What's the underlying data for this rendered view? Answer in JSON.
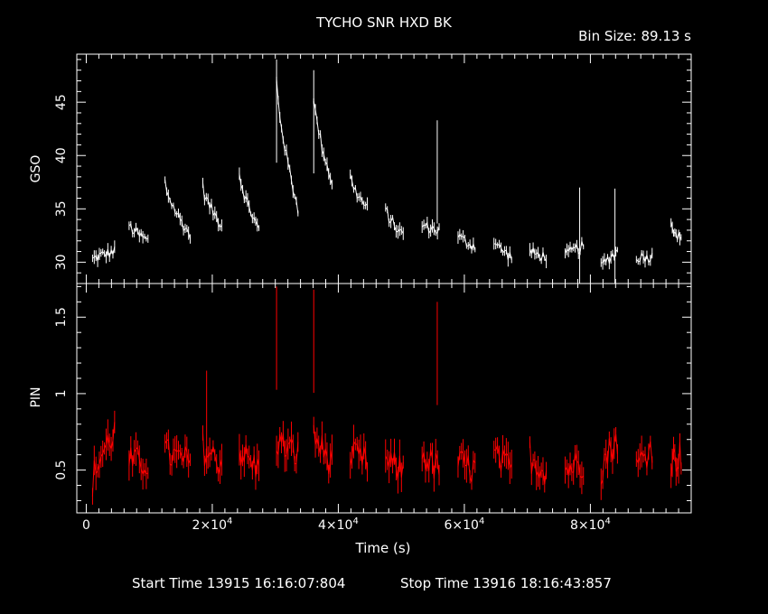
{
  "title": "TYCHO SNR HXD BK",
  "bin_size": "Bin Size: 89.13 s",
  "x_label": "Time (s)",
  "start_time": "Start Time 13915 16:16:07:804",
  "stop_time": "Stop Time 13916 18:16:43:857",
  "colors": {
    "gso": "#ffffff",
    "pin": "#ff0000",
    "axes": "#ffffff",
    "background": "#000000"
  },
  "chart_data": [
    {
      "type": "line",
      "panel": "top",
      "ylabel": "GSO",
      "xlim": [
        -1500,
        96000
      ],
      "ylim": [
        28,
        49.5
      ],
      "y_ticks": [
        30,
        35,
        40,
        45
      ],
      "y_tick_labels": [
        "30",
        "35",
        "40",
        "45"
      ],
      "segments": [
        {
          "start": 1000,
          "end": 4500,
          "v0": 30.2,
          "v1": 31.0
        },
        {
          "start": 6800,
          "end": 9800,
          "v0": 33.5,
          "v1": 32.0
        },
        {
          "start": 12500,
          "end": 16500,
          "v0": 37.5,
          "v1": 32.5
        },
        {
          "start": 18500,
          "end": 21500,
          "v0": 37.0,
          "v1": 33.5
        },
        {
          "start": 24300,
          "end": 27400,
          "v0": 38.5,
          "v1": 33.0
        },
        {
          "start": 30200,
          "end": 33600,
          "v0": 47.0,
          "v1": 35.0
        },
        {
          "start": 36100,
          "end": 39000,
          "v0": 45.5,
          "v1": 37.5
        },
        {
          "start": 41900,
          "end": 44600,
          "v0": 38.0,
          "v1": 35.0
        },
        {
          "start": 47500,
          "end": 50300,
          "v0": 35.0,
          "v1": 32.5
        },
        {
          "start": 53300,
          "end": 56000,
          "v0": 33.5,
          "v1": 33.0
        },
        {
          "start": 59000,
          "end": 61700,
          "v0": 32.5,
          "v1": 31.5
        },
        {
          "start": 64700,
          "end": 67500,
          "v0": 32.0,
          "v1": 30.5
        },
        {
          "start": 70400,
          "end": 73000,
          "v0": 31.0,
          "v1": 30.5
        },
        {
          "start": 76000,
          "end": 78900,
          "v0": 30.5,
          "v1": 31.5
        },
        {
          "start": 81700,
          "end": 84300,
          "v0": 29.5,
          "v1": 31.0
        },
        {
          "start": 87300,
          "end": 89800,
          "v0": 30.5,
          "v1": 30.5
        },
        {
          "start": 92800,
          "end": 94400,
          "v0": 34.0,
          "v1": 32.0
        }
      ],
      "spikes": [
        {
          "x": 30200,
          "y": 49.0
        },
        {
          "x": 36100,
          "y": 48.0
        },
        {
          "x": 55700,
          "y": 43.3
        },
        {
          "x": 78300,
          "y": 37.0
        },
        {
          "x": 83900,
          "y": 36.9
        }
      ]
    },
    {
      "type": "line",
      "panel": "bottom",
      "ylabel": "PIN",
      "xlim": [
        -1500,
        96000
      ],
      "ylim": [
        0.22,
        1.72
      ],
      "y_ticks": [
        0.5,
        1,
        1.5
      ],
      "y_tick_labels": [
        "0.5",
        "1",
        "1.5"
      ],
      "x_ticks": [
        0,
        20000,
        40000,
        60000,
        80000
      ],
      "x_tick_labels": [
        {
          "mant": "0",
          "exp": ""
        },
        {
          "mant": "2×10",
          "exp": "4"
        },
        {
          "mant": "4×10",
          "exp": "4"
        },
        {
          "mant": "6×10",
          "exp": "4"
        },
        {
          "mant": "8×10",
          "exp": "4"
        }
      ],
      "segments": [
        {
          "start": 1000,
          "end": 4500,
          "v0": 0.42,
          "v1": 0.75
        },
        {
          "start": 6800,
          "end": 9800,
          "v0": 0.55,
          "v1": 0.55
        },
        {
          "start": 12500,
          "end": 16500,
          "v0": 0.62,
          "v1": 0.55
        },
        {
          "start": 18500,
          "end": 21500,
          "v0": 0.65,
          "v1": 0.55
        },
        {
          "start": 24300,
          "end": 27400,
          "v0": 0.65,
          "v1": 0.5
        },
        {
          "start": 30200,
          "end": 33600,
          "v0": 0.7,
          "v1": 0.6
        },
        {
          "start": 36100,
          "end": 39000,
          "v0": 0.75,
          "v1": 0.55
        },
        {
          "start": 41900,
          "end": 44600,
          "v0": 0.6,
          "v1": 0.55
        },
        {
          "start": 47500,
          "end": 50300,
          "v0": 0.55,
          "v1": 0.5
        },
        {
          "start": 53300,
          "end": 56000,
          "v0": 0.62,
          "v1": 0.5
        },
        {
          "start": 59000,
          "end": 61700,
          "v0": 0.55,
          "v1": 0.5
        },
        {
          "start": 64700,
          "end": 67500,
          "v0": 0.6,
          "v1": 0.5
        },
        {
          "start": 70400,
          "end": 73000,
          "v0": 0.6,
          "v1": 0.5
        },
        {
          "start": 76000,
          "end": 78900,
          "v0": 0.5,
          "v1": 0.55
        },
        {
          "start": 81700,
          "end": 84300,
          "v0": 0.5,
          "v1": 0.7
        },
        {
          "start": 87300,
          "end": 89800,
          "v0": 0.5,
          "v1": 0.65
        },
        {
          "start": 92800,
          "end": 94400,
          "v0": 0.55,
          "v1": 0.6
        }
      ],
      "spikes": [
        {
          "x": 19100,
          "y": 1.15
        },
        {
          "x": 30200,
          "y": 1.7
        },
        {
          "x": 36100,
          "y": 1.68
        },
        {
          "x": 55700,
          "y": 1.6
        }
      ]
    }
  ]
}
